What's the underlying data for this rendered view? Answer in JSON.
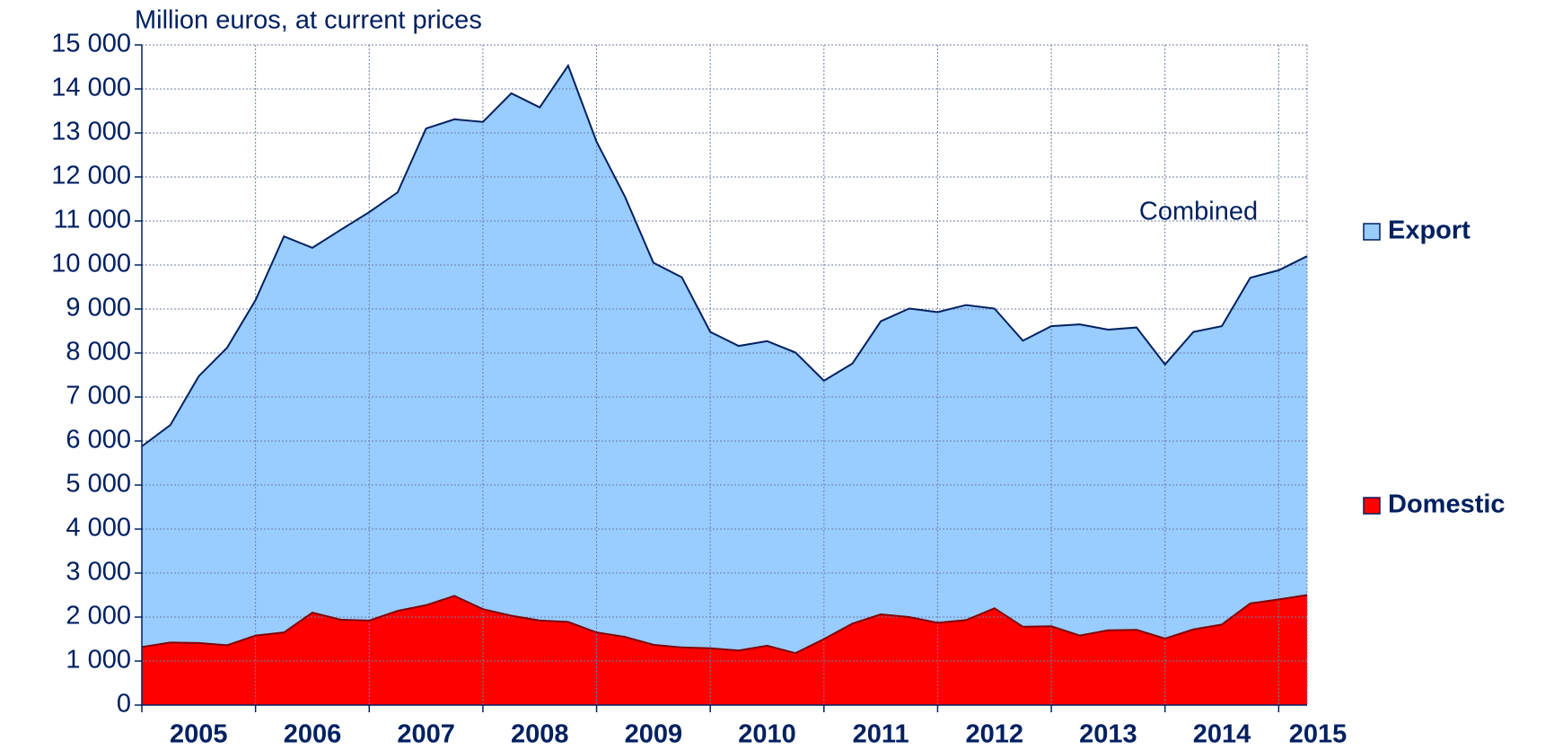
{
  "chart_data": {
    "type": "stacked-area",
    "title": "Million euros, at current prices",
    "annotation": "Combined",
    "categories": [
      null,
      null,
      "2005",
      null,
      null,
      null,
      "2006",
      null,
      null,
      null,
      "2007",
      null,
      null,
      null,
      "2008",
      null,
      null,
      null,
      "2009",
      null,
      null,
      null,
      "2010",
      null,
      null,
      null,
      "2011",
      null,
      null,
      null,
      "2012",
      null,
      null,
      null,
      "2013",
      null,
      null,
      null,
      "2014",
      null,
      null,
      "2015"
    ],
    "series": [
      {
        "name": "Domestic",
        "color": "#ff0000",
        "values": [
          1320,
          1420,
          1410,
          1360,
          1580,
          1650,
          2100,
          1940,
          1920,
          2140,
          2270,
          2480,
          2180,
          2030,
          1920,
          1890,
          1650,
          1550,
          1370,
          1310,
          1290,
          1240,
          1350,
          1180,
          1500,
          1850,
          2060,
          2000,
          1870,
          1930,
          2200,
          1780,
          1790,
          1580,
          1700,
          1710,
          1510,
          1720,
          1830,
          2310,
          2400,
          2500
        ]
      },
      {
        "name": "Export",
        "color": "#99ccff",
        "values": [
          4560,
          4940,
          6060,
          6760,
          7620,
          9000,
          8290,
          8860,
          9280,
          9510,
          10830,
          10830,
          11070,
          11870,
          11660,
          12640,
          11150,
          10000,
          8680,
          8410,
          7190,
          6920,
          6920,
          6830,
          5870,
          5910,
          6660,
          7010,
          7060,
          7160,
          6810,
          6500,
          6820,
          7070,
          6830,
          6870,
          6230,
          6760,
          6780,
          7400,
          7480,
          7700
        ]
      }
    ],
    "ylim": [
      0,
      15000
    ],
    "yticks": [
      0,
      {
        "value": 1000,
        "label": "1 000"
      },
      {
        "value": 2000,
        "label": "2 000"
      },
      {
        "value": 3000,
        "label": "3 000"
      },
      {
        "value": 4000,
        "label": "4 000"
      },
      {
        "value": 5000,
        "label": "5 000"
      },
      {
        "value": 6000,
        "label": "6 000"
      },
      {
        "value": 7000,
        "label": "7 000"
      },
      {
        "value": 8000,
        "label": "8 000"
      },
      {
        "value": 9000,
        "label": "9 000"
      },
      {
        "value": 10000,
        "label": "10 000"
      },
      {
        "value": 11000,
        "label": "11 000"
      },
      {
        "value": 12000,
        "label": "12 000"
      },
      {
        "value": 13000,
        "label": "13 000"
      },
      {
        "value": 14000,
        "label": "14 000"
      },
      {
        "value": 15000,
        "label": "15 000"
      }
    ],
    "grid": true,
    "legend": "right"
  }
}
